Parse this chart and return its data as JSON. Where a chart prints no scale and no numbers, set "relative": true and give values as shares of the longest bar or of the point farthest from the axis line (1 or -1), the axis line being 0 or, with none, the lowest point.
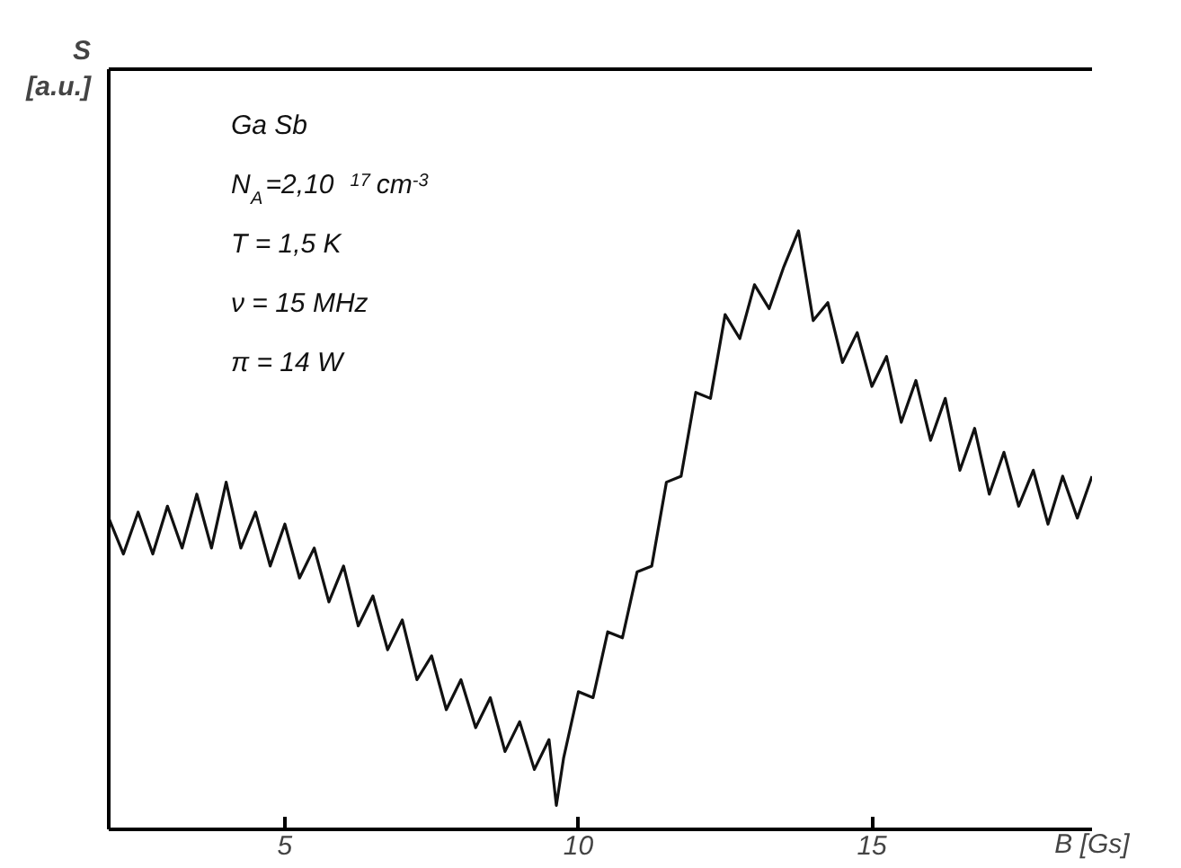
{
  "chart_data": {
    "type": "line",
    "relative": true,
    "xlabel": "B [Gs]",
    "ylabel": "S\n[a.u.]",
    "xlim": [
      2,
      18.75
    ],
    "xticks": [
      5,
      10,
      15
    ],
    "grid": false,
    "marker": "none",
    "line_style": "solid",
    "annotations": [
      "Ga Sb",
      "N$_{A}$=2,10$^{17}$cm$^{-3}$",
      "T = 1,5 K",
      "ν = 15 MHz",
      "π = 14 W"
    ],
    "series": [
      {
        "color": "#111111",
        "x": [
          2.0,
          2.25,
          2.5,
          2.75,
          3.0,
          3.25,
          3.5,
          3.75,
          4.0,
          4.25,
          4.5,
          4.75,
          5.0,
          5.25,
          5.5,
          5.75,
          6.0,
          6.25,
          6.5,
          6.75,
          7.0,
          7.25,
          7.5,
          7.75,
          8.0,
          8.25,
          8.5,
          8.75,
          9.0,
          9.25,
          9.5,
          9.625,
          9.75,
          10.0,
          10.25,
          10.5,
          10.75,
          11.0,
          11.25,
          11.5,
          11.75,
          12.0,
          12.25,
          12.5,
          12.75,
          13.0,
          13.25,
          13.5,
          13.75,
          14.0,
          14.25,
          14.5,
          14.75,
          15.0,
          15.25,
          15.5,
          15.75,
          16.0,
          16.25,
          16.5,
          16.75,
          17.0,
          17.25,
          17.5,
          17.75,
          18.0,
          18.25,
          18.5,
          18.75
        ],
        "values": [
          0.52,
          0.46,
          0.53,
          0.46,
          0.54,
          0.47,
          0.56,
          0.47,
          0.58,
          0.47,
          0.53,
          0.44,
          0.51,
          0.42,
          0.47,
          0.38,
          0.44,
          0.34,
          0.39,
          0.3,
          0.35,
          0.25,
          0.29,
          0.2,
          0.25,
          0.17,
          0.22,
          0.13,
          0.18,
          0.1,
          0.15,
          0.04,
          0.12,
          0.23,
          0.22,
          0.33,
          0.32,
          0.43,
          0.44,
          0.58,
          0.59,
          0.73,
          0.72,
          0.86,
          0.82,
          0.91,
          0.87,
          0.94,
          1,
          0.85,
          0.88,
          0.78,
          0.83,
          0.74,
          0.79,
          0.68,
          0.75,
          0.65,
          0.72,
          0.6,
          0.67,
          0.56,
          0.63,
          0.54,
          0.6,
          0.51,
          0.59,
          0.52,
          0.59
        ]
      }
    ]
  }
}
